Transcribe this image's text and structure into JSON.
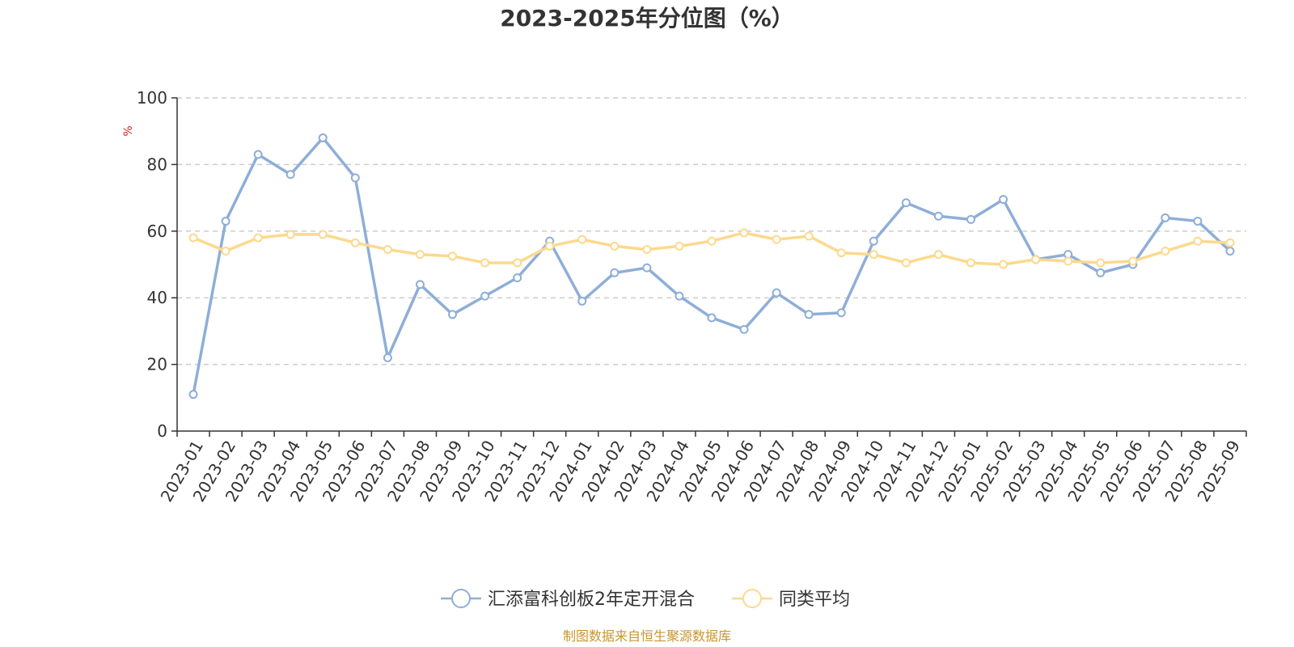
{
  "chart_data": {
    "type": "line",
    "title": "2023-2025年分位图（%）",
    "ylabel": "%",
    "ylim": [
      0,
      100
    ],
    "yticks": [
      0,
      20,
      40,
      60,
      80,
      100
    ],
    "grid": true,
    "legend_position": "bottom-center",
    "categories": [
      "2023-01",
      "2023-02",
      "2023-03",
      "2023-04",
      "2023-05",
      "2023-06",
      "2023-07",
      "2023-08",
      "2023-09",
      "2023-10",
      "2023-11",
      "2023-12",
      "2024-01",
      "2024-02",
      "2024-03",
      "2024-04",
      "2024-05",
      "2024-06",
      "2024-07",
      "2024-08",
      "2024-09",
      "2024-10",
      "2024-11",
      "2024-12",
      "2025-01",
      "2025-02",
      "2025-03",
      "2025-04",
      "2025-05",
      "2025-06",
      "2025-07",
      "2025-08",
      "2025-09"
    ],
    "series": [
      {
        "name": "汇添富科创板2年定开混合",
        "color": "#8eaed8",
        "values": [
          11,
          63,
          83,
          77,
          88,
          76,
          22,
          44,
          35,
          40.5,
          46,
          57,
          39,
          47.5,
          49,
          40.5,
          34,
          30.5,
          41.5,
          35,
          35.5,
          57,
          68.5,
          64.5,
          63.5,
          69.5,
          51.5,
          53,
          47.5,
          50,
          64,
          63,
          54
        ]
      },
      {
        "name": "同类平均",
        "color": "#fcd98d",
        "values": [
          58,
          54,
          58,
          59,
          59,
          56.5,
          54.5,
          53,
          52.5,
          50.5,
          50.5,
          55.5,
          57.5,
          55.5,
          54.5,
          55.5,
          57,
          59.5,
          57.5,
          58.5,
          53.5,
          53,
          50.5,
          53,
          50.5,
          50,
          51.5,
          51,
          50.5,
          51,
          54,
          57,
          56.5
        ]
      }
    ]
  },
  "source_text": "制图数据来自恒生聚源数据库"
}
